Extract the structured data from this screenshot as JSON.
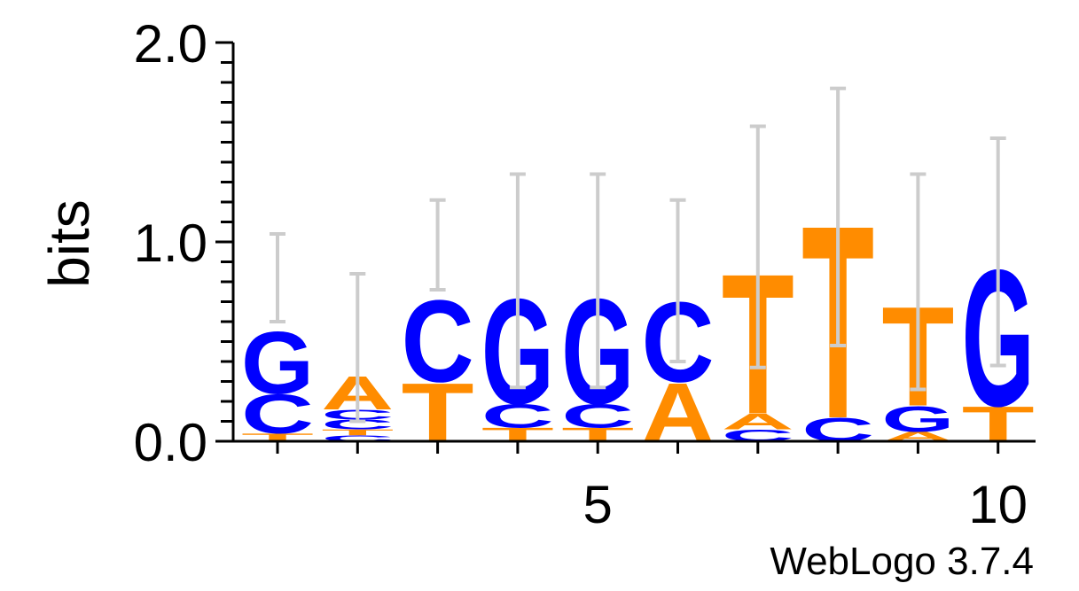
{
  "chart_data": {
    "type": "sequence-logo",
    "ylabel": "bits",
    "ylim": [
      0,
      2.0
    ],
    "y_tick_labels": [
      "0.0",
      "1.0",
      "2.0"
    ],
    "x_tick_labels": [
      "5",
      "10"
    ],
    "x_tick_label_positions": [
      5,
      10
    ],
    "positions": [
      1,
      2,
      3,
      4,
      5,
      6,
      7,
      8,
      9,
      10
    ],
    "colors": {
      "A": "#ff8c00",
      "T": "#ff8c00",
      "C": "#0000ff",
      "G": "#0000ff"
    },
    "columns": [
      {
        "position": 1,
        "letters": [
          {
            "base": "T",
            "bits": 0.04
          },
          {
            "base": "C",
            "bits": 0.2
          },
          {
            "base": "G",
            "bits": 0.32
          }
        ],
        "error": [
          0.6,
          1.04
        ]
      },
      {
        "position": 2,
        "letters": [
          {
            "base": "C",
            "bits": 0.03
          },
          {
            "base": "T",
            "bits": 0.03
          },
          {
            "base": "C",
            "bits": 0.05
          },
          {
            "base": "C",
            "bits": 0.05
          },
          {
            "base": "A",
            "bits": 0.17
          }
        ],
        "error": [
          0.1,
          0.84
        ]
      },
      {
        "position": 3,
        "letters": [
          {
            "base": "T",
            "bits": 0.3
          },
          {
            "base": "C",
            "bits": 0.42
          }
        ],
        "error": [
          0.76,
          1.21
        ]
      },
      {
        "position": 4,
        "letters": [
          {
            "base": "T",
            "bits": 0.07
          },
          {
            "base": "C",
            "bits": 0.12
          },
          {
            "base": "G",
            "bits": 0.54
          }
        ],
        "error": [
          0.27,
          1.34
        ]
      },
      {
        "position": 5,
        "letters": [
          {
            "base": "T",
            "bits": 0.07
          },
          {
            "base": "C",
            "bits": 0.12
          },
          {
            "base": "G",
            "bits": 0.54
          }
        ],
        "error": [
          0.27,
          1.34
        ]
      },
      {
        "position": 6,
        "letters": [
          {
            "base": "A",
            "bits": 0.3
          },
          {
            "base": "C",
            "bits": 0.41
          }
        ],
        "error": [
          0.4,
          1.21
        ]
      },
      {
        "position": 7,
        "letters": [
          {
            "base": "C",
            "bits": 0.06
          },
          {
            "base": "A",
            "bits": 0.08
          },
          {
            "base": "T",
            "bits": 0.72
          }
        ],
        "error": [
          0.37,
          1.58
        ]
      },
      {
        "position": 8,
        "letters": [
          {
            "base": "C",
            "bits": 0.12
          },
          {
            "base": "T",
            "bits": 0.99
          }
        ],
        "error": [
          0.48,
          1.77
        ]
      },
      {
        "position": 9,
        "letters": [
          {
            "base": "A",
            "bits": 0.05
          },
          {
            "base": "G",
            "bits": 0.13
          },
          {
            "base": "T",
            "bits": 0.51
          }
        ],
        "error": [
          0.26,
          1.34
        ]
      },
      {
        "position": 10,
        "letters": [
          {
            "base": "T",
            "bits": 0.18
          },
          {
            "base": "G",
            "bits": 0.7
          }
        ],
        "error": [
          0.38,
          1.52
        ]
      }
    ]
  },
  "footer": {
    "credit": "WebLogo 3.7.4"
  }
}
